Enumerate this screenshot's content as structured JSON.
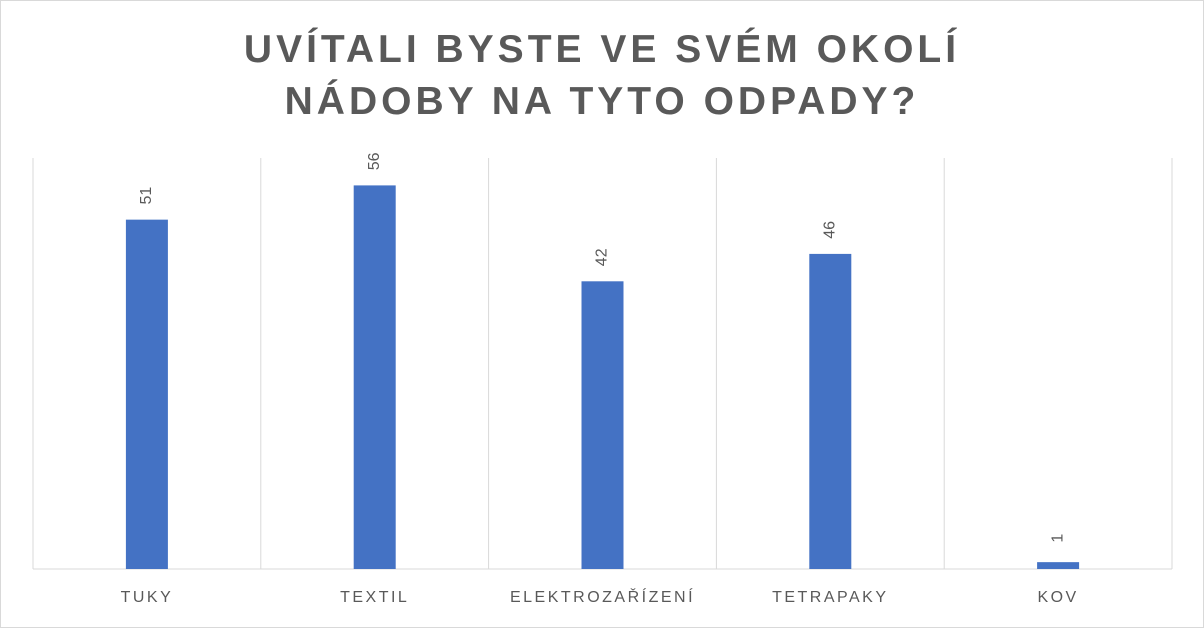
{
  "chart_data": {
    "type": "bar",
    "title": "UVÍTALI BYSTE VE SVÉM OKOLÍ NÁDOBY NA TYTO ODPADY?",
    "categories": [
      "TUKY",
      "TEXTIL",
      "ELEKTROZAŘÍZENÍ",
      "TETRAPAKY",
      "KOV"
    ],
    "values": [
      51,
      56,
      42,
      46,
      1
    ],
    "color": "#4472c4",
    "ylim": [
      0,
      60
    ]
  }
}
